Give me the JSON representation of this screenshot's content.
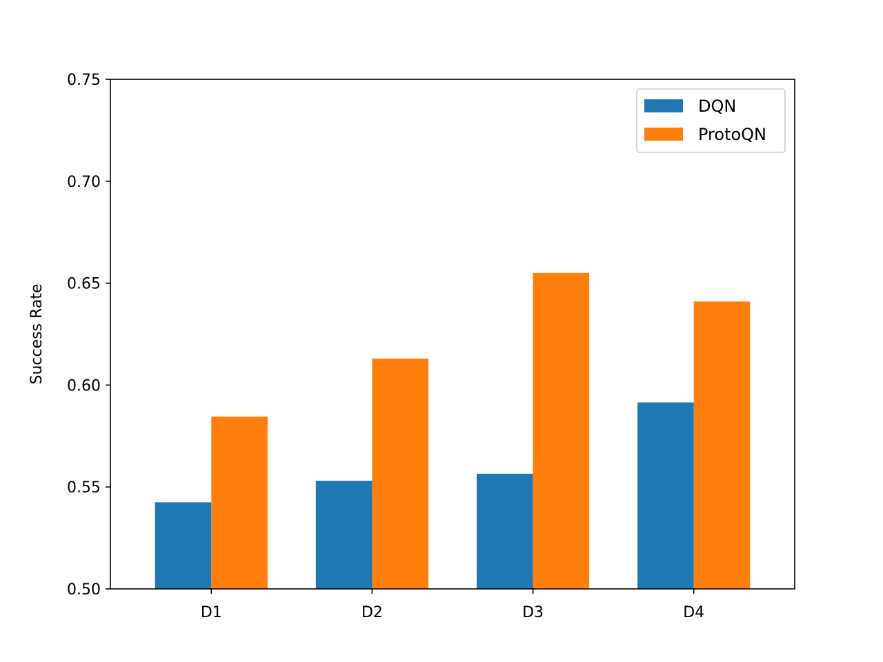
{
  "chart_data": {
    "type": "bar",
    "title": "",
    "xlabel": "",
    "ylabel": "Success Rate",
    "categories": [
      "D1",
      "D2",
      "D3",
      "D4"
    ],
    "series": [
      {
        "name": "DQN",
        "values": [
          0.5425,
          0.553,
          0.5565,
          0.5915
        ],
        "color": "#1f77b4"
      },
      {
        "name": "ProtoQN",
        "values": [
          0.5845,
          0.613,
          0.655,
          0.641
        ],
        "color": "#ff7f0e"
      }
    ],
    "ylim": [
      0.5,
      0.75
    ],
    "yticks": [
      "0.50",
      "0.55",
      "0.60",
      "0.65",
      "0.70",
      "0.75"
    ],
    "legend_position": "top-right",
    "grid": false
  }
}
